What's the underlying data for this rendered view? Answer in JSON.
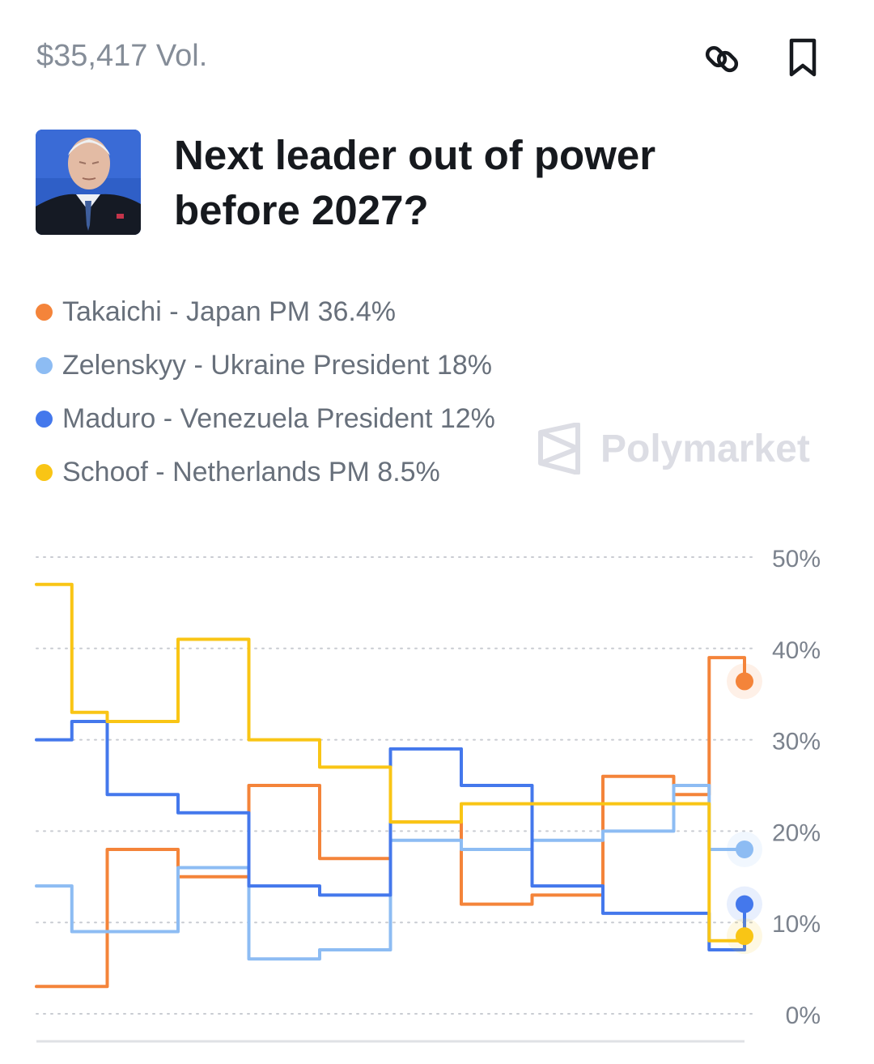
{
  "market": {
    "volume": "$35,417 Vol.",
    "title": "Next leader out of power before 2027?",
    "brand": "Polymarket",
    "icons": {
      "link": "link-icon",
      "bookmark": "bookmark-icon",
      "thumbnail": "market-thumbnail"
    }
  },
  "legend": [
    {
      "label": "Takaichi - Japan PM 36.4%",
      "color": "#f4843a"
    },
    {
      "label": "Zelenskyy - Ukraine President 18%",
      "color": "#8dbcf3"
    },
    {
      "label": "Maduro - Venezuela President 12%",
      "color": "#4478ec"
    },
    {
      "label": "Schoof - Netherlands PM 8.5%",
      "color": "#f9c515"
    }
  ],
  "chart_data": {
    "type": "line",
    "ylim": [
      0,
      50
    ],
    "yticks": [
      "0%",
      "10%",
      "20%",
      "30%",
      "40%",
      "50%"
    ],
    "grid": true,
    "legend_position": "top-left",
    "x": [
      0,
      5,
      10,
      20,
      30,
      40,
      50,
      60,
      70,
      80,
      90,
      95,
      100
    ],
    "series": [
      {
        "name": "Takaichi - Japan PM",
        "color": "#f4843a",
        "values": [
          3,
          3,
          18,
          15,
          25,
          17,
          21,
          12,
          13,
          26,
          24,
          39,
          36.4
        ]
      },
      {
        "name": "Zelenskyy - Ukraine President",
        "color": "#8dbcf3",
        "values": [
          14,
          9,
          9,
          16,
          6,
          7,
          19,
          18,
          19,
          20,
          25,
          18,
          18
        ]
      },
      {
        "name": "Maduro - Venezuela President",
        "color": "#4478ec",
        "values": [
          30,
          32,
          24,
          22,
          14,
          13,
          29,
          25,
          14,
          11,
          11,
          7,
          12
        ]
      },
      {
        "name": "Schoof - Netherlands PM",
        "color": "#f9c515",
        "values": [
          47,
          33,
          32,
          41,
          30,
          27,
          21,
          23,
          23,
          23,
          23,
          8,
          8.5
        ]
      }
    ]
  }
}
